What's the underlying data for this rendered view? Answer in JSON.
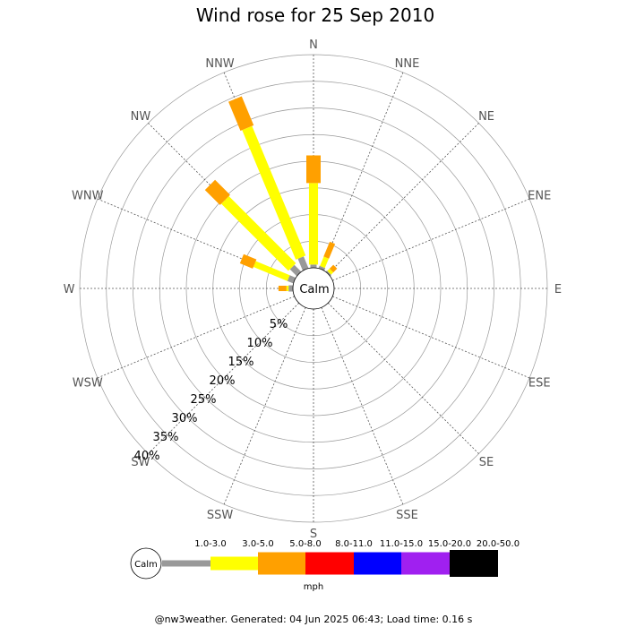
{
  "chart_data": {
    "type": "wind-rose",
    "title": "Wind rose for 25 Sep 2010",
    "directions": [
      "N",
      "NNE",
      "NE",
      "ENE",
      "E",
      "ESE",
      "SE",
      "SSE",
      "S",
      "SSW",
      "SW",
      "WSW",
      "W",
      "WNW",
      "NW",
      "NNW"
    ],
    "radial_labels": [
      "5%",
      "10%",
      "15%",
      "20%",
      "25%",
      "30%",
      "35%",
      "40%"
    ],
    "radial_max": 40,
    "calm_label": "Calm",
    "speed_bins": [
      {
        "label": "1.0-3.0",
        "color": "#999999"
      },
      {
        "label": "3.0-5.0",
        "color": "#ffff00"
      },
      {
        "label": "5.0-8.0",
        "color": "#ffa000"
      },
      {
        "label": "8.0-11.0",
        "color": "#ff0000"
      },
      {
        "label": "11.0-15.0",
        "color": "#0000ff"
      },
      {
        "label": "15.0-20.0",
        "color": "#a020f0"
      },
      {
        "label": "20.0-50.0",
        "color": "#000000"
      }
    ],
    "unit_label": "mph",
    "series": [
      {
        "direction": "N",
        "values": [
          0.6,
          15.3,
          5.2,
          0,
          0,
          0,
          0
        ]
      },
      {
        "direction": "NNE",
        "values": [
          0.5,
          1.9,
          3.0,
          0,
          0,
          0,
          0
        ]
      },
      {
        "direction": "NE",
        "values": [
          0.3,
          0.6,
          1.0,
          0,
          0,
          0,
          0
        ]
      },
      {
        "direction": "ENE",
        "values": [
          0,
          0,
          0,
          0,
          0,
          0,
          0
        ]
      },
      {
        "direction": "E",
        "values": [
          0,
          0,
          0,
          0,
          0,
          0,
          0
        ]
      },
      {
        "direction": "ESE",
        "values": [
          0,
          0,
          0,
          0,
          0,
          0,
          0
        ]
      },
      {
        "direction": "SE",
        "values": [
          0,
          0,
          0,
          0,
          0,
          0,
          0
        ]
      },
      {
        "direction": "SSE",
        "values": [
          0,
          0,
          0,
          0,
          0,
          0,
          0
        ]
      },
      {
        "direction": "S",
        "values": [
          0,
          0,
          0,
          0,
          0,
          0,
          0
        ]
      },
      {
        "direction": "SSW",
        "values": [
          0,
          0,
          0,
          0,
          0,
          0,
          0
        ]
      },
      {
        "direction": "SW",
        "values": [
          0,
          0,
          0,
          0,
          0,
          0,
          0
        ]
      },
      {
        "direction": "WSW",
        "values": [
          0,
          0,
          0,
          0,
          0,
          0,
          0
        ]
      },
      {
        "direction": "W",
        "values": [
          0.8,
          0.4,
          1.5,
          0,
          0,
          0,
          0
        ]
      },
      {
        "direction": "WNW",
        "values": [
          1.2,
          6.9,
          2.6,
          0,
          0,
          0,
          0
        ]
      },
      {
        "direction": "NW",
        "values": [
          1.8,
          17.8,
          4.0,
          0,
          0,
          0,
          0
        ]
      },
      {
        "direction": "NNW",
        "values": [
          2.4,
          26.3,
          5.9,
          0,
          0,
          0,
          0
        ]
      }
    ]
  },
  "footer": "@nw3weather. Generated: 04 Jun 2025 06:43; Load time: 0.16 s"
}
